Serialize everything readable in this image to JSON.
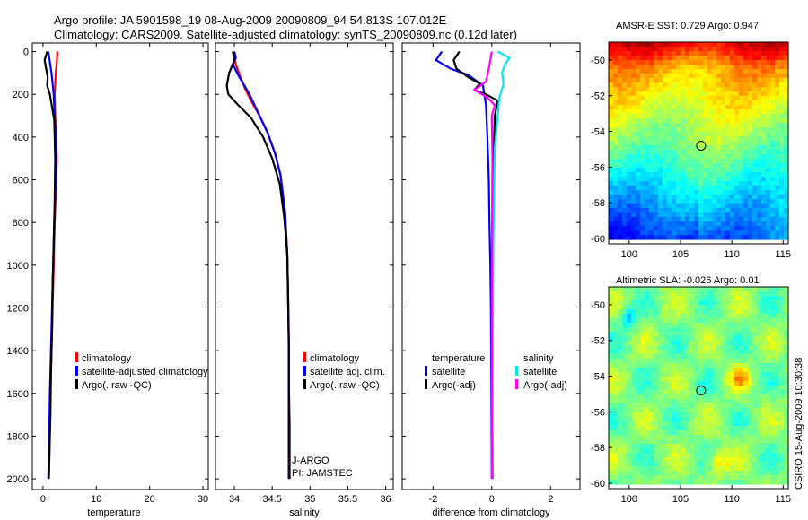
{
  "header": {
    "line1": "Argo profile: JA 5901598_19 08-Aug-2009 20090809_94 54.813S 107.012E",
    "line2": "Climatology: CARS2009. Satellite-adjusted climatology: synTS_20090809.nc (0.12d later)"
  },
  "colors": {
    "climatology": "#ff0000",
    "satellite": "#0000ff",
    "argo": "#000000",
    "cyan": "#00e5ee",
    "magenta": "#ff00ff"
  },
  "depth_axis": {
    "ticks": [
      "0",
      "200",
      "400",
      "600",
      "800",
      "1000",
      "1200",
      "1400",
      "1600",
      "1800",
      "2000"
    ],
    "values": [
      0,
      200,
      400,
      600,
      800,
      1000,
      1200,
      1400,
      1600,
      1800,
      2000
    ]
  },
  "chart_data": [
    {
      "id": "temperature",
      "type": "line",
      "xlabel": "temperature",
      "xlim": [
        -2,
        31
      ],
      "ylim": [
        2050,
        -40
      ],
      "xticks": [
        0,
        10,
        20,
        30
      ],
      "xtick_labels": [
        "0",
        "10",
        "20",
        "30"
      ],
      "legend": [
        "climatology",
        "satellite-adjusted climatology",
        "Argo(..raw -QC)"
      ],
      "series": [
        {
          "name": "climatology",
          "color": "#ff0000",
          "x": [
            2.7,
            2.6,
            2.4,
            2.3,
            2.2,
            2.3,
            2.5,
            2.6,
            2.5,
            2.2,
            2.0,
            1.8,
            1.6,
            1.4,
            1.3,
            1.2,
            1.1
          ],
          "y": [
            0,
            50,
            100,
            150,
            200,
            300,
            400,
            500,
            600,
            800,
            1000,
            1200,
            1400,
            1600,
            1750,
            1900,
            2000
          ]
        },
        {
          "name": "satellite-adjusted climatology",
          "color": "#0000ff",
          "x": [
            1.0,
            1.3,
            1.6,
            1.8,
            2.0,
            2.2,
            2.4,
            2.5,
            2.4,
            2.1,
            1.9,
            1.7,
            1.5,
            1.3,
            1.2,
            1.1,
            1.0
          ],
          "y": [
            0,
            50,
            100,
            150,
            200,
            300,
            400,
            500,
            600,
            800,
            1000,
            1200,
            1400,
            1600,
            1750,
            1900,
            2000
          ]
        },
        {
          "name": "Argo(..raw -QC)",
          "color": "#000000",
          "x": [
            0.8,
            0.3,
            0.6,
            0.9,
            0.8,
            1.3,
            1.7,
            2.1,
            2.2,
            2.3,
            2.2,
            2.0,
            1.8,
            1.7,
            1.5,
            1.4,
            1.2,
            1.1
          ],
          "y": [
            0,
            40,
            80,
            120,
            160,
            200,
            260,
            320,
            400,
            500,
            700,
            900,
            1100,
            1300,
            1500,
            1700,
            1900,
            2000
          ]
        }
      ]
    },
    {
      "id": "salinity",
      "type": "line",
      "xlabel": "salinity",
      "xlim": [
        33.75,
        36.1
      ],
      "ylim": [
        2050,
        -40
      ],
      "xticks": [
        34,
        34.5,
        35,
        35.5,
        36
      ],
      "xtick_labels": [
        "34",
        "34.5",
        "35",
        "35.5",
        "36"
      ],
      "legend": [
        "climatology",
        "satellite adj. clim.",
        "Argo(..raw -QC)"
      ],
      "annotation": [
        "J-ARGO",
        "PI: JAMSTEC"
      ],
      "series": [
        {
          "name": "climatology",
          "color": "#ff0000",
          "x": [
            33.98,
            34.02,
            34.08,
            34.15,
            34.22,
            34.33,
            34.44,
            34.54,
            34.61,
            34.67,
            34.7,
            34.71,
            34.72,
            34.72,
            34.72,
            34.72,
            34.72
          ],
          "y": [
            0,
            60,
            120,
            180,
            230,
            300,
            380,
            480,
            580,
            750,
            950,
            1150,
            1350,
            1550,
            1750,
            1900,
            2000
          ]
        },
        {
          "name": "satellite adj. clim.",
          "color": "#0000ff",
          "x": [
            34.0,
            34.02,
            33.98,
            34.05,
            34.2,
            34.32,
            34.44,
            34.54,
            34.61,
            34.67,
            34.7,
            34.71,
            34.72,
            34.72,
            34.73,
            34.73,
            34.73
          ],
          "y": [
            0,
            30,
            60,
            110,
            200,
            290,
            380,
            480,
            580,
            750,
            950,
            1150,
            1350,
            1550,
            1750,
            1900,
            2000
          ]
        },
        {
          "name": "Argo(..raw -QC)",
          "color": "#000000",
          "x": [
            33.98,
            34.0,
            33.93,
            33.9,
            33.92,
            34.05,
            34.22,
            34.38,
            34.5,
            34.6,
            34.66,
            34.7,
            34.71,
            34.72,
            34.72,
            34.72,
            34.72
          ],
          "y": [
            0,
            40,
            100,
            160,
            200,
            250,
            310,
            400,
            500,
            620,
            780,
            950,
            1150,
            1400,
            1650,
            1850,
            2000
          ]
        }
      ]
    },
    {
      "id": "difference",
      "type": "line",
      "xlabel": "difference from climatology",
      "xlim": [
        -3.05,
        3.0
      ],
      "ylim": [
        2050,
        -40
      ],
      "xticks": [
        -2,
        0,
        2
      ],
      "xtick_labels": [
        "-2",
        "0",
        "2"
      ],
      "legend_left_title": "temperature",
      "legend_right_title": "salinity",
      "legend_left": [
        "satellite",
        "Argo(-adj)"
      ],
      "legend_right": [
        "satellite",
        "Argo(-adj)"
      ],
      "series": [
        {
          "name": "temperature satellite",
          "color": "#0000ff",
          "x": [
            -1.7,
            -1.9,
            -1.4,
            -0.8,
            -0.3,
            -0.2,
            -0.15,
            -0.1,
            -0.08,
            -0.05,
            -0.03,
            -0.02,
            -0.01,
            0.0
          ],
          "y": [
            0,
            40,
            80,
            110,
            160,
            250,
            400,
            600,
            800,
            1000,
            1200,
            1500,
            1800,
            2000
          ]
        },
        {
          "name": "temperature Argo(-adj)",
          "color": "#000000",
          "x": [
            -1.1,
            -1.3,
            -1.2,
            -0.8,
            -0.4,
            -0.6,
            -0.2,
            0.2,
            0.1,
            0.06,
            0.04,
            0.03,
            0.02,
            0.02,
            0.03
          ],
          "y": [
            0,
            40,
            80,
            120,
            150,
            180,
            200,
            230,
            300,
            500,
            800,
            1100,
            1400,
            1700,
            2000
          ]
        },
        {
          "name": "salinity satellite",
          "color": "#00e5ee",
          "x": [
            0.2,
            0.6,
            0.45,
            0.35,
            0.4,
            0.25,
            0.2,
            0.1,
            0.08,
            0.05,
            0.04,
            0.03,
            0.02,
            0.02
          ],
          "y": [
            0,
            30,
            60,
            100,
            150,
            220,
            300,
            450,
            650,
            900,
            1200,
            1500,
            1800,
            2000
          ]
        },
        {
          "name": "salinity Argo(-adj)",
          "color": "#ff00ff",
          "x": [
            0.0,
            -0.1,
            -0.2,
            -0.6,
            -0.2,
            0.1,
            0.0,
            0.02,
            0.01,
            0.0,
            0.0,
            0.0
          ],
          "y": [
            0,
            80,
            140,
            180,
            210,
            250,
            300,
            500,
            800,
            1200,
            1600,
            2000
          ]
        }
      ]
    },
    {
      "id": "sst_map",
      "type": "heatmap",
      "title": "AMSR-E SST: 0.729 Argo: 0.947",
      "xlim": [
        98,
        115.5
      ],
      "ylim": [
        -60.3,
        -49
      ],
      "xticks": [
        100,
        105,
        110,
        115
      ],
      "xtick_labels": [
        "100",
        "105",
        "110",
        "115"
      ],
      "yticks": [
        -50,
        -52,
        -54,
        -56,
        -58,
        -60
      ],
      "ytick_labels": [
        "-50",
        "-52",
        "-54",
        "-56",
        "-58",
        "-60"
      ],
      "marker": {
        "lon": 107.0,
        "lat": -54.8
      }
    },
    {
      "id": "sla_map",
      "type": "heatmap",
      "title": "Altimetric SLA: -0.026 Argo: 0.01",
      "xlim": [
        98,
        115.5
      ],
      "ylim": [
        -60.3,
        -49
      ],
      "xticks": [
        100,
        105,
        110,
        115
      ],
      "xtick_labels": [
        "100",
        "105",
        "110",
        "115"
      ],
      "yticks": [
        -50,
        -52,
        -54,
        -56,
        -58,
        -60
      ],
      "ytick_labels": [
        "-50",
        "-52",
        "-54",
        "-56",
        "-58",
        "-60"
      ],
      "marker": {
        "lon": 107.0,
        "lat": -54.8
      }
    }
  ],
  "footer": {
    "stamp": "CSIRO 15-Aug-2009 10:30:38"
  }
}
